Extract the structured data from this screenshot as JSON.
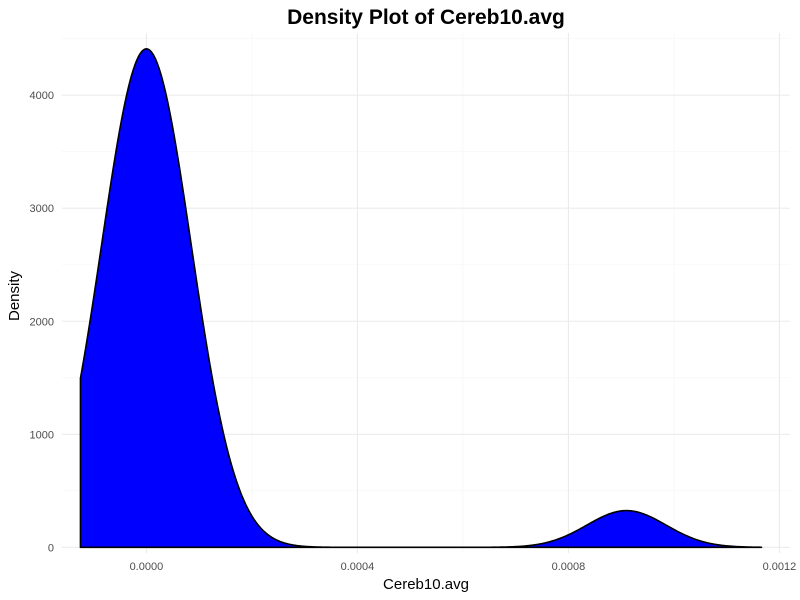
{
  "chart_data": {
    "type": "area",
    "title": "Density Plot of Cereb10.avg",
    "xlabel": "Cereb10.avg",
    "ylabel": "Density",
    "xlim": [
      -0.00016,
      0.00122
    ],
    "ylim": [
      -50,
      4550
    ],
    "x_ticks": [
      0.0,
      0.0004,
      0.0008,
      0.0012
    ],
    "x_tick_labels": [
      "0.0000",
      "0.0004",
      "0.0008",
      "0.0012"
    ],
    "y_ticks": [
      0,
      1000,
      2000,
      3000,
      4000
    ],
    "y_tick_labels": [
      "0",
      "1000",
      "2000",
      "3000",
      "4000"
    ],
    "x_range": [
      -0.000125,
      0.001166
    ],
    "components": [
      {
        "mean": 0.0,
        "sd": 8.5e-05,
        "peak": 4410
      },
      {
        "mean": 0.00091,
        "sd": 7.5e-05,
        "peak": 325
      }
    ],
    "grid": true,
    "legend": "none",
    "fill_color": "#0000ff",
    "line_color": "#000000"
  }
}
